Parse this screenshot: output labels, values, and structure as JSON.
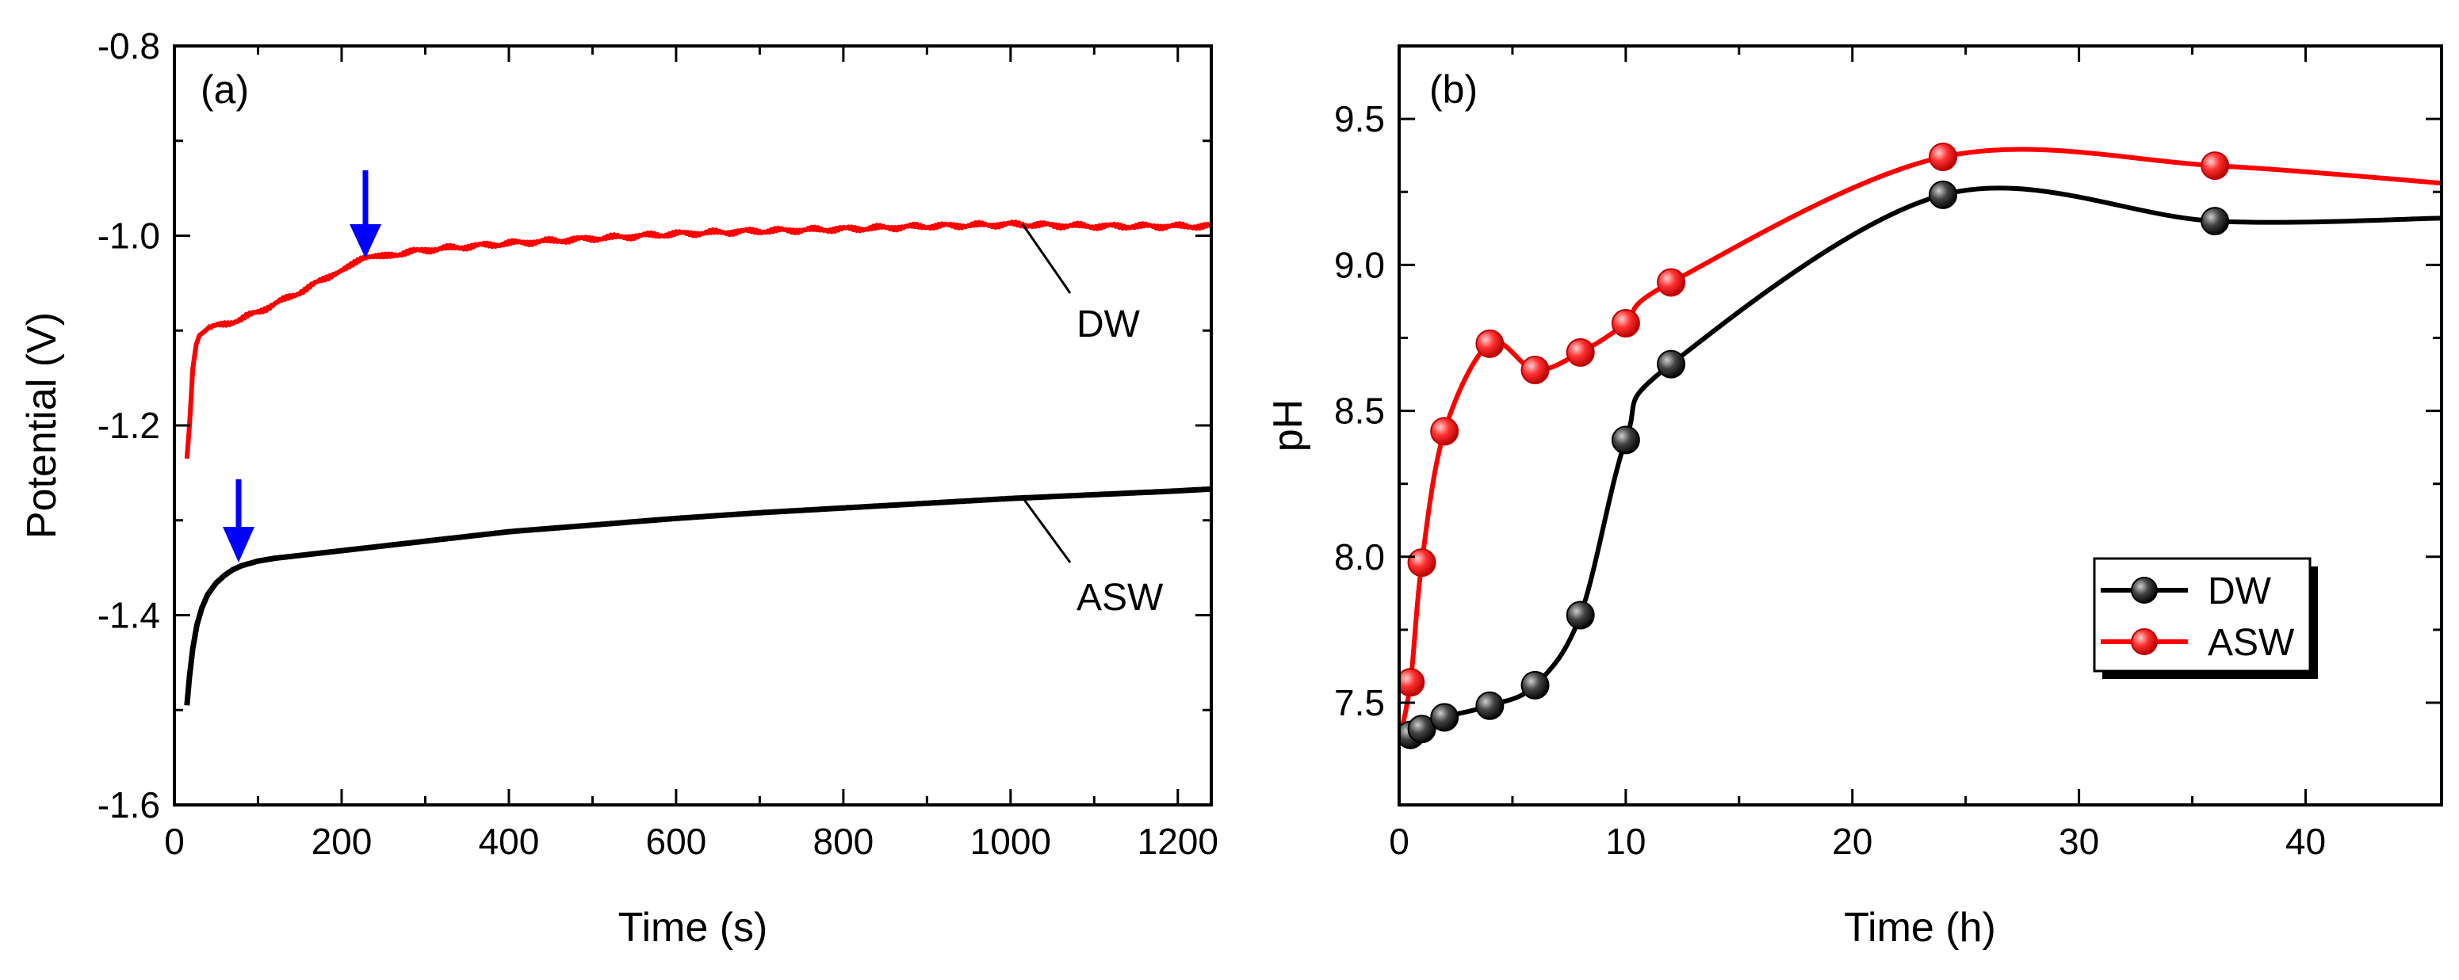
{
  "chart_data": [
    {
      "id": "a",
      "type": "line",
      "panel_label": "(a)",
      "xlabel": "Time (s)",
      "ylabel": "Potential (V)",
      "xlim": [
        0,
        1240
      ],
      "ylim": [
        -1.6,
        -0.8
      ],
      "xticks": [
        0,
        200,
        400,
        600,
        800,
        1000,
        1200
      ],
      "xtick_labels": [
        "0",
        "200",
        "400",
        "600",
        "800",
        "1000",
        "1200"
      ],
      "yticks": [
        -1.6,
        -1.4,
        -1.2,
        -1.0,
        -0.8
      ],
      "ytick_labels": [
        "-1.6",
        "-1.4",
        "-1.2",
        "-1.0",
        "-0.8"
      ],
      "grid": false,
      "series": [
        {
          "name": "DW",
          "color": "#ff0000",
          "x": [
            15,
            18,
            22,
            26,
            30,
            40,
            60,
            80,
            100,
            130,
            160,
            190,
            225,
            260,
            300,
            400,
            500,
            600,
            700,
            800,
            900,
            1000,
            1100,
            1200,
            1240
          ],
          "y": [
            -1.235,
            -1.2,
            -1.14,
            -1.115,
            -1.105,
            -1.098,
            -1.093,
            -1.088,
            -1.08,
            -1.068,
            -1.055,
            -1.04,
            -1.025,
            -1.02,
            -1.015,
            -1.008,
            -1.003,
            -0.998,
            -0.995,
            -0.993,
            -0.99,
            -0.988,
            -0.99,
            -0.99,
            -0.99
          ],
          "annotation": "DW",
          "arrow_at_x": 225
        },
        {
          "name": "ASW",
          "color": "#000000",
          "x": [
            15,
            18,
            22,
            27,
            33,
            40,
            50,
            60,
            70,
            80,
            100,
            120,
            150,
            200,
            300,
            400,
            500,
            600,
            700,
            800,
            900,
            1000,
            1100,
            1200,
            1240
          ],
          "y": [
            -1.495,
            -1.465,
            -1.435,
            -1.41,
            -1.392,
            -1.378,
            -1.366,
            -1.358,
            -1.352,
            -1.348,
            -1.343,
            -1.34,
            -1.337,
            -1.332,
            -1.322,
            -1.312,
            -1.305,
            -1.298,
            -1.292,
            -1.287,
            -1.282,
            -1.277,
            -1.273,
            -1.269,
            -1.267
          ],
          "annotation": "ASW",
          "arrow_at_x": 75
        }
      ]
    },
    {
      "id": "b",
      "type": "line",
      "panel_label": "(b)",
      "xlabel": "Time (h)",
      "ylabel": "pH",
      "xlim": [
        0,
        46
      ],
      "ylim": [
        7.15,
        9.75
      ],
      "xticks": [
        0,
        10,
        20,
        30,
        40
      ],
      "xtick_labels": [
        "0",
        "10",
        "20",
        "30",
        "40"
      ],
      "yticks": [
        7.5,
        8.0,
        8.5,
        9.0,
        9.5
      ],
      "ytick_labels": [
        "7.5",
        "8.0",
        "8.5",
        "9.0",
        "9.5"
      ],
      "grid": false,
      "legend_position": "lower-right",
      "series": [
        {
          "name": "DW",
          "color": "#000000",
          "x": [
            0,
            0.5,
            1,
            2,
            4,
            6,
            8,
            10,
            12,
            24,
            36,
            46
          ],
          "y": [
            7.37,
            7.39,
            7.41,
            7.45,
            7.49,
            7.56,
            7.8,
            8.4,
            8.66,
            9.24,
            9.15,
            9.16
          ],
          "markers_x": [
            0.5,
            1,
            2,
            4,
            6,
            8,
            10,
            12,
            24,
            36
          ]
        },
        {
          "name": "ASW",
          "color": "#ff0000",
          "x": [
            0,
            0.5,
            1,
            2,
            4,
            6,
            8,
            10,
            12,
            24,
            36,
            46
          ],
          "y": [
            7.37,
            7.57,
            7.98,
            8.43,
            8.73,
            8.64,
            8.7,
            8.8,
            8.94,
            9.37,
            9.34,
            9.28
          ],
          "markers_x": [
            0.5,
            1,
            2,
            4,
            6,
            8,
            10,
            12,
            24,
            36
          ]
        }
      ],
      "legend": [
        "DW",
        "ASW"
      ]
    }
  ],
  "colors": {
    "arrow": "#0000ff",
    "axis": "#000000"
  }
}
